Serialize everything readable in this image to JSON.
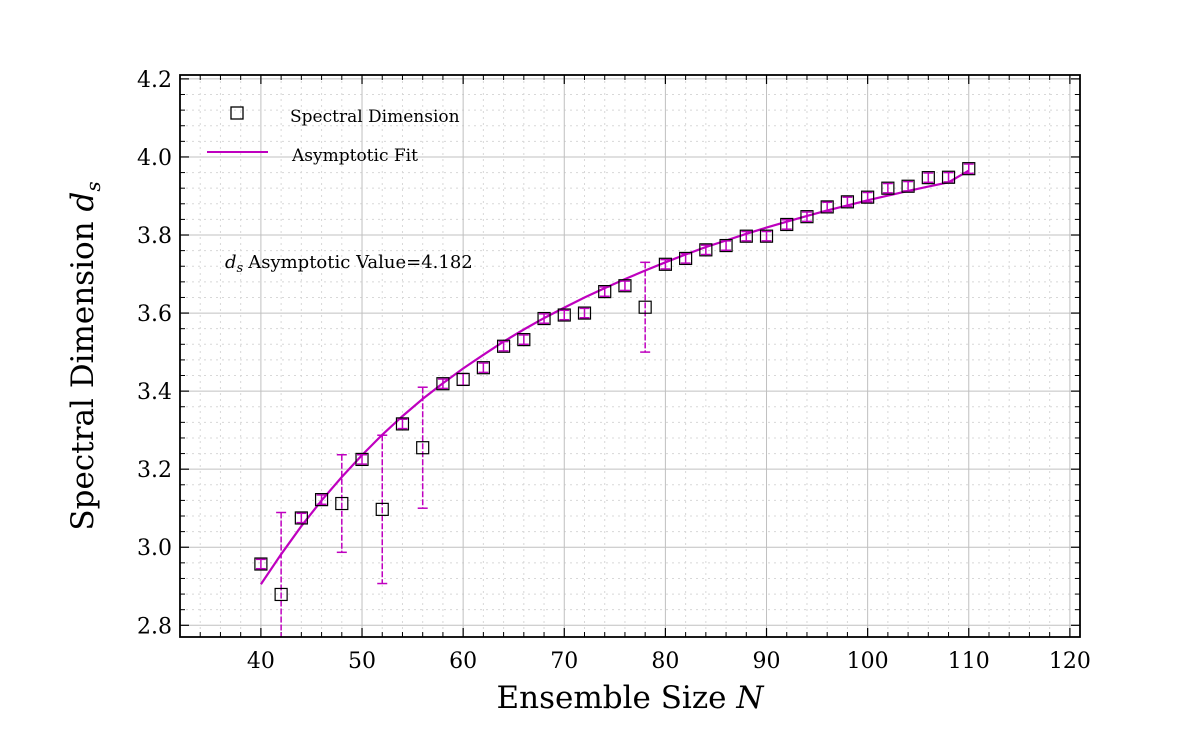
{
  "chart_data": {
    "type": "scatter",
    "title": "",
    "xlabel": "Ensemble Size",
    "xlabel_symbol": "N",
    "ylabel": "Spectral Dimension",
    "ylabel_symbol": "d",
    "ylabel_subscript": "s",
    "xlim": [
      32,
      121
    ],
    "ylim": [
      2.77,
      4.21
    ],
    "x_ticks": [
      40,
      50,
      60,
      70,
      80,
      90,
      100,
      110,
      120
    ],
    "x_tick_labels": [
      "40",
      "50",
      "60",
      "70",
      "80",
      "90",
      "100",
      "110",
      "120"
    ],
    "y_ticks": [
      2.8,
      3.0,
      3.2,
      3.4,
      3.6,
      3.8,
      4.0,
      4.2
    ],
    "y_tick_labels": [
      "2.8",
      "3.0",
      "3.2",
      "3.4",
      "3.6",
      "3.8",
      "4.0",
      "4.2"
    ],
    "grid": true,
    "legend_position": "top-left",
    "colors": {
      "fit": "#bf00bf",
      "errorbar": "#bf00bf",
      "marker_edge": "#000000",
      "grid_major": "#c0c0c0",
      "grid_minor": "#d8d8d8"
    },
    "series": [
      {
        "name": "Spectral Dimension",
        "kind": "markers",
        "x": [
          40,
          42,
          44,
          46,
          48,
          50,
          52,
          54,
          56,
          58,
          60,
          62,
          64,
          66,
          68,
          70,
          72,
          74,
          76,
          78,
          80,
          82,
          84,
          86,
          88,
          90,
          92,
          94,
          96,
          98,
          100,
          102,
          104,
          106,
          108,
          110
        ],
        "y": [
          2.957,
          2.879,
          3.075,
          3.122,
          3.112,
          3.225,
          3.097,
          3.316,
          3.255,
          3.419,
          3.43,
          3.46,
          3.515,
          3.532,
          3.586,
          3.595,
          3.6,
          3.655,
          3.67,
          3.615,
          3.725,
          3.74,
          3.762,
          3.773,
          3.797,
          3.797,
          3.827,
          3.847,
          3.872,
          3.885,
          3.897,
          3.92,
          3.925,
          3.947,
          3.948,
          3.97
        ],
        "yerr": [
          0.012,
          0.21,
          0.012,
          0.012,
          0.125,
          0.012,
          0.19,
          0.012,
          0.155,
          0.012,
          0.015,
          0.012,
          0.012,
          0.012,
          0.012,
          0.012,
          0.012,
          0.012,
          0.012,
          0.115,
          0.012,
          0.012,
          0.012,
          0.012,
          0.012,
          0.012,
          0.012,
          0.012,
          0.012,
          0.012,
          0.012,
          0.012,
          0.012,
          0.012,
          0.012,
          0.012
        ]
      },
      {
        "name": "Asymptotic Fit",
        "kind": "line",
        "x": [
          40,
          42,
          44,
          46,
          48,
          50,
          52,
          54,
          56,
          58,
          60,
          62,
          64,
          66,
          68,
          70,
          72,
          74,
          76,
          78,
          80,
          82,
          84,
          86,
          88,
          90,
          92,
          94,
          96,
          98,
          100,
          102,
          104,
          106,
          108,
          110
        ],
        "y": [
          2.905,
          2.982,
          3.054,
          3.12,
          3.18,
          3.236,
          3.288,
          3.336,
          3.38,
          3.42,
          3.458,
          3.493,
          3.527,
          3.558,
          3.587,
          3.614,
          3.64,
          3.664,
          3.687,
          3.709,
          3.73,
          3.75,
          3.769,
          3.786,
          3.803,
          3.819,
          3.834,
          3.849,
          3.863,
          3.876,
          3.889,
          3.901,
          3.913,
          3.924,
          3.935,
          3.965
        ]
      }
    ],
    "annotation": {
      "symbol": "d",
      "subscript": "s",
      "text": "Asymptotic Value=4.182"
    }
  }
}
